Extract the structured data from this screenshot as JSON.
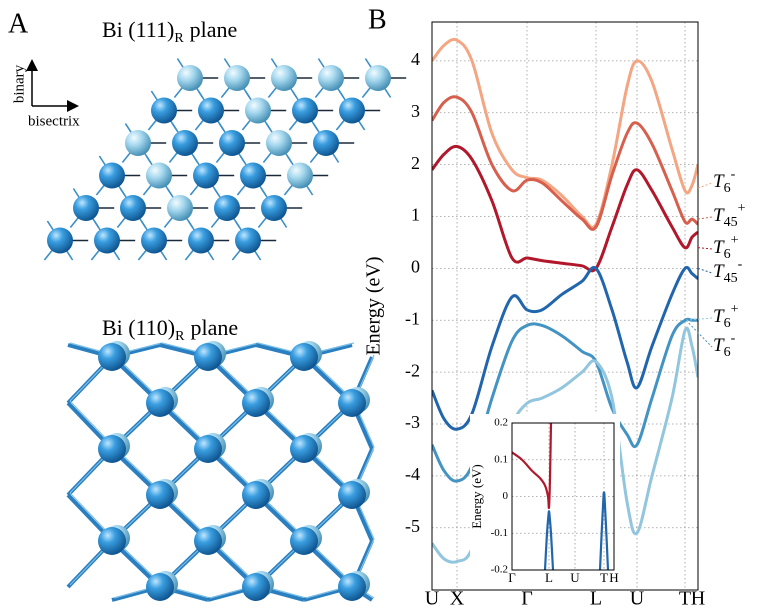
{
  "figure": {
    "label_a": "A",
    "label_b": "B",
    "top_title": {
      "text": "Bi (111)",
      "sub": "R",
      "rest": "plane"
    },
    "bottom_title": {
      "text": "Bi (110)",
      "sub": "R",
      "rest": "plane"
    },
    "axis_up": "binary",
    "axis_right": "bisectrix"
  },
  "chart_data": [
    {
      "type": "line",
      "ylabel": "Energy (eV)",
      "grid": true,
      "xlim": [
        0,
        266
      ],
      "ylim": [
        -6.2,
        4.75
      ],
      "xticks": [
        {
          "value": 0,
          "label": "U"
        },
        {
          "value": 25,
          "label": "X"
        },
        {
          "value": 95,
          "label": "Γ"
        },
        {
          "value": 164,
          "label": "L"
        },
        {
          "value": 205,
          "label": "U"
        },
        {
          "value": 253,
          "label": "T"
        },
        {
          "value": 266,
          "label": "H"
        }
      ],
      "yticks": [
        -5,
        -4,
        -3,
        -2,
        -1,
        0,
        1,
        2,
        3,
        4
      ],
      "x": [
        0,
        12,
        25,
        40,
        60,
        80,
        95,
        110,
        130,
        150,
        164,
        180,
        195,
        205,
        220,
        240,
        253,
        260,
        266
      ],
      "series": [
        {
          "color": "#f4a582",
          "values": [
            4.0,
            4.3,
            4.4,
            4.0,
            2.6,
            1.9,
            1.75,
            1.7,
            1.4,
            1.0,
            0.85,
            2.0,
            3.5,
            4.0,
            3.6,
            2.3,
            1.5,
            1.6,
            2.0
          ]
        },
        {
          "color": "#d6604d",
          "values": [
            2.85,
            3.2,
            3.3,
            3.0,
            2.0,
            1.5,
            1.7,
            1.65,
            1.3,
            0.95,
            0.8,
            1.8,
            2.6,
            2.8,
            2.4,
            1.5,
            0.9,
            0.95,
            0.85
          ]
        },
        {
          "color": "#b2182b",
          "values": [
            1.9,
            2.2,
            2.35,
            2.1,
            1.3,
            0.2,
            0.2,
            0.15,
            0.1,
            0.05,
            0,
            0.8,
            1.6,
            1.9,
            1.5,
            0.8,
            0.4,
            0.6,
            0.7
          ]
        },
        {
          "color": "#2166ac",
          "values": [
            -2.35,
            -2.9,
            -3.1,
            -2.8,
            -1.5,
            -0.55,
            -0.8,
            -0.8,
            -0.5,
            -0.25,
            0,
            -0.8,
            -1.8,
            -2.3,
            -1.5,
            -0.5,
            0,
            -0.1,
            -0.2
          ]
        },
        {
          "color": "#4393c3",
          "values": [
            -3.4,
            -3.9,
            -4.1,
            -3.8,
            -2.5,
            -1.4,
            -1.1,
            -1.1,
            -1.3,
            -1.6,
            -1.8,
            -2.7,
            -3.2,
            -3.4,
            -2.5,
            -1.3,
            -1.0,
            -1.0,
            -1.0
          ]
        },
        {
          "color": "#92c5de",
          "values": [
            -5.3,
            -5.6,
            -5.65,
            -5.4,
            -4.0,
            -3.0,
            -2.6,
            -2.5,
            -2.3,
            -2.0,
            -1.8,
            -2.5,
            -4.5,
            -5.1,
            -4.0,
            -2.5,
            -1.2,
            -1.5,
            -2.1
          ]
        }
      ],
      "annotations": [
        {
          "base": "T",
          "sub": "6",
          "sup": "-",
          "at": 1.55,
          "color": "#f4a582"
        },
        {
          "base": "T",
          "sub": "45",
          "sup": "+",
          "at": 0.95,
          "color": "#d6604d"
        },
        {
          "base": "T",
          "sub": "6",
          "sup": "+",
          "at": 0.4,
          "color": "#b2182b"
        },
        {
          "base": "T",
          "sub": "45",
          "sup": "-",
          "at": 0,
          "color": "#2166ac"
        },
        {
          "base": "T",
          "sub": "6",
          "sup": "+",
          "at": -1.0,
          "color": "#92c5de"
        },
        {
          "base": "T",
          "sub": "6",
          "sup": "-",
          "at": -1.0,
          "color": "#4393c3"
        }
      ]
    },
    {
      "type": "line",
      "ylabel": "Energy (eV)",
      "grid": true,
      "xlim": [
        0,
        102
      ],
      "ylim": [
        -0.2,
        0.2
      ],
      "xticks": [
        {
          "value": 0,
          "label": "Γ"
        },
        {
          "value": 37,
          "label": "L"
        },
        {
          "value": 63,
          "label": "U"
        },
        {
          "value": 92,
          "label": "T"
        },
        {
          "value": 102,
          "label": "H"
        }
      ],
      "yticks": [
        -0.2,
        -0.1,
        0,
        0.1,
        0.2
      ],
      "series": [
        {
          "color": "#b2182b",
          "x": [
            0,
            10,
            20,
            28,
            33,
            36,
            37,
            38,
            39
          ],
          "values": [
            0.12,
            0.1,
            0.07,
            0.05,
            0.03,
            0.0,
            -0.03,
            0.05,
            0.2
          ]
        },
        {
          "color": "#2166ac",
          "x": [
            33,
            35,
            36.5,
            37,
            37.5,
            39,
            41
          ],
          "values": [
            -0.2,
            -0.1,
            -0.05,
            -0.04,
            -0.05,
            -0.1,
            -0.2
          ]
        },
        {
          "color": "#2166ac",
          "x": [
            88,
            90,
            91.5,
            92,
            92.5,
            94,
            96
          ],
          "values": [
            -0.2,
            -0.08,
            0.0,
            0.01,
            0.0,
            -0.08,
            -0.2
          ]
        }
      ]
    }
  ]
}
